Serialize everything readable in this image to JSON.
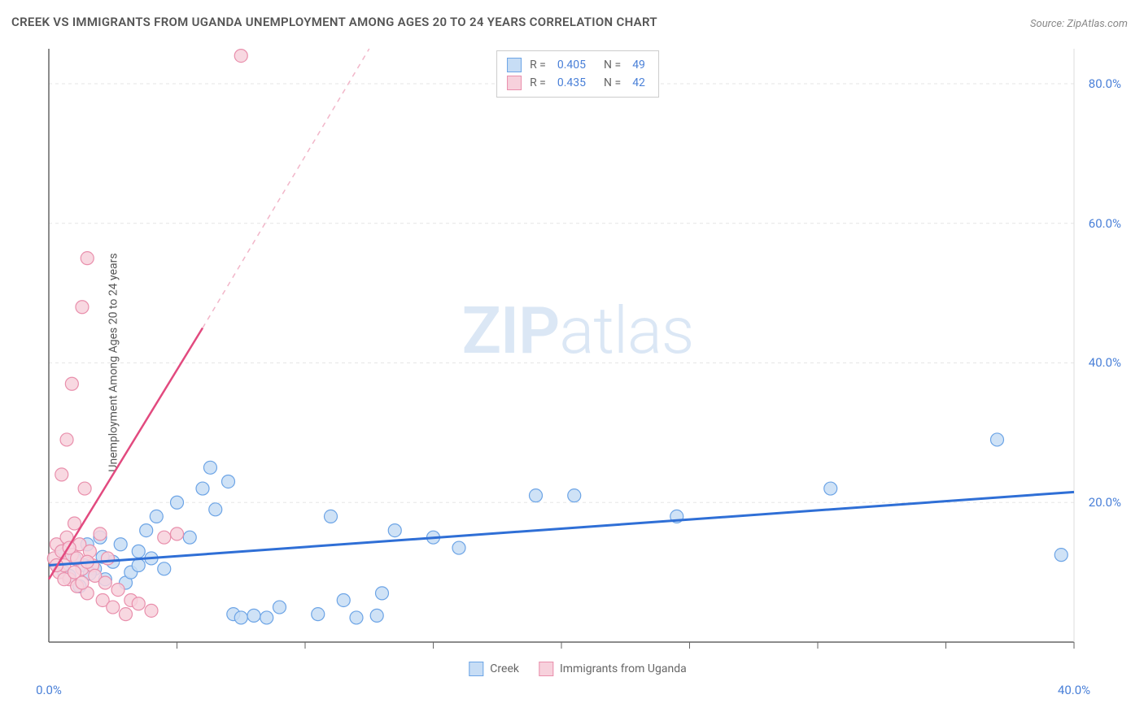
{
  "chart": {
    "type": "scatter",
    "title": "CREEK VS IMMIGRANTS FROM UGANDA UNEMPLOYMENT AMONG AGES 20 TO 24 YEARS CORRELATION CHART",
    "source": "Source: ZipAtlas.com",
    "y_axis_label": "Unemployment Among Ages 20 to 24 years",
    "watermark": {
      "left": "ZIP",
      "right": "atlas"
    },
    "background_color": "#ffffff",
    "grid_color": "#e6e6e6",
    "axis_line_color": "#666666",
    "xlim": [
      0,
      40
    ],
    "ylim": [
      0,
      85
    ],
    "x_ticks": [
      {
        "v": 0,
        "label": "0.0%"
      },
      {
        "v": 40,
        "label": "40.0%"
      }
    ],
    "y_ticks": [
      {
        "v": 20,
        "label": "20.0%"
      },
      {
        "v": 40,
        "label": "40.0%"
      },
      {
        "v": 60,
        "label": "60.0%"
      },
      {
        "v": 80,
        "label": "80.0%"
      }
    ],
    "x_grid_lines": [
      5,
      10,
      15,
      20,
      25,
      30,
      35,
      40
    ],
    "stats_legend": [
      {
        "swatch_fill": "#c7ddf5",
        "swatch_stroke": "#6ca4e6",
        "r_label": "R =",
        "r_value": "0.405",
        "n_label": "N =",
        "n_value": "49"
      },
      {
        "swatch_fill": "#f7d1dc",
        "swatch_stroke": "#e98fac",
        "r_label": "R =",
        "r_value": "0.435",
        "n_label": "N =",
        "n_value": "42"
      }
    ],
    "series_legend": [
      {
        "swatch_fill": "#c7ddf5",
        "swatch_stroke": "#6ca4e6",
        "label": "Creek"
      },
      {
        "swatch_fill": "#f7d1dc",
        "swatch_stroke": "#e98fac",
        "label": "Immigrants from Uganda"
      }
    ],
    "series": [
      {
        "name": "Creek",
        "marker_fill": "#c7ddf5",
        "marker_stroke": "#6ca4e6",
        "marker_radius": 8,
        "trend": {
          "color": "#2f6fd6",
          "width": 3,
          "x1": 0,
          "y1": 11,
          "x2": 40,
          "y2": 21.5
        },
        "points": [
          [
            0.3,
            11
          ],
          [
            0.5,
            13
          ],
          [
            0.6,
            10
          ],
          [
            0.8,
            9.5
          ],
          [
            1.0,
            12
          ],
          [
            1.2,
            8
          ],
          [
            1.4,
            11
          ],
          [
            1.5,
            14
          ],
          [
            1.8,
            10.5
          ],
          [
            2.0,
            15
          ],
          [
            2.2,
            9
          ],
          [
            2.5,
            11.5
          ],
          [
            2.8,
            14
          ],
          [
            3.0,
            8.5
          ],
          [
            3.2,
            10
          ],
          [
            3.5,
            13
          ],
          [
            3.8,
            16
          ],
          [
            4.0,
            12
          ],
          [
            4.2,
            18
          ],
          [
            4.5,
            10.5
          ],
          [
            5.0,
            20
          ],
          [
            5.5,
            15
          ],
          [
            6.0,
            22
          ],
          [
            6.3,
            25
          ],
          [
            6.5,
            19
          ],
          [
            7.0,
            23
          ],
          [
            7.2,
            4
          ],
          [
            7.5,
            3.5
          ],
          [
            8.0,
            3.8
          ],
          [
            8.5,
            3.5
          ],
          [
            9.0,
            5
          ],
          [
            10.5,
            4
          ],
          [
            11.0,
            18
          ],
          [
            11.5,
            6
          ],
          [
            12.0,
            3.5
          ],
          [
            12.8,
            3.8
          ],
          [
            13.0,
            7
          ],
          [
            13.5,
            16
          ],
          [
            15.0,
            15
          ],
          [
            16.0,
            13.5
          ],
          [
            19.0,
            21
          ],
          [
            20.5,
            21
          ],
          [
            24.5,
            18
          ],
          [
            30.5,
            22
          ],
          [
            37.0,
            29
          ],
          [
            39.5,
            12.5
          ],
          [
            3.5,
            11
          ],
          [
            2.1,
            12.2
          ],
          [
            1.6,
            9.8
          ]
        ]
      },
      {
        "name": "Immigrants from Uganda",
        "marker_fill": "#f7d1dc",
        "marker_stroke": "#e98fac",
        "marker_radius": 8,
        "trend": {
          "color": "#e24a7f",
          "width": 2.5,
          "x1": 0,
          "y1": 9,
          "x2": 6,
          "y2": 45
        },
        "trend_dashed": {
          "color": "#f2b6c9",
          "width": 1.5,
          "x1": 6,
          "y1": 45,
          "x2": 12.5,
          "y2": 85
        },
        "points": [
          [
            0.2,
            12
          ],
          [
            0.3,
            14
          ],
          [
            0.4,
            10
          ],
          [
            0.5,
            13
          ],
          [
            0.6,
            11
          ],
          [
            0.7,
            15
          ],
          [
            0.8,
            9
          ],
          [
            0.9,
            12.5
          ],
          [
            1.0,
            17
          ],
          [
            1.1,
            8
          ],
          [
            1.2,
            14
          ],
          [
            1.3,
            10.5
          ],
          [
            1.4,
            22
          ],
          [
            1.5,
            7
          ],
          [
            1.6,
            13
          ],
          [
            1.7,
            11
          ],
          [
            1.8,
            9.5
          ],
          [
            2.0,
            15.5
          ],
          [
            2.1,
            6
          ],
          [
            2.2,
            8.5
          ],
          [
            2.3,
            12
          ],
          [
            2.5,
            5
          ],
          [
            2.7,
            7.5
          ],
          [
            3.0,
            4
          ],
          [
            3.2,
            6
          ],
          [
            3.5,
            5.5
          ],
          [
            4.0,
            4.5
          ],
          [
            4.5,
            15
          ],
          [
            5.0,
            15.5
          ],
          [
            0.5,
            24
          ],
          [
            0.7,
            29
          ],
          [
            0.9,
            37
          ],
          [
            1.3,
            48
          ],
          [
            1.5,
            55
          ],
          [
            7.5,
            84
          ],
          [
            0.3,
            11
          ],
          [
            0.6,
            9
          ],
          [
            0.8,
            13.5
          ],
          [
            1.0,
            10
          ],
          [
            1.1,
            12
          ],
          [
            1.3,
            8.5
          ],
          [
            1.5,
            11.5
          ]
        ]
      }
    ]
  }
}
